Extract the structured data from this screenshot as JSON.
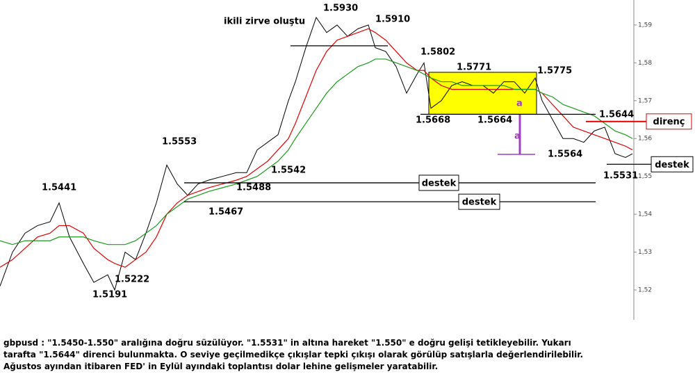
{
  "chart_data": {
    "type": "line",
    "title": "ikili zirve oluştu",
    "x": [
      0,
      18,
      36,
      54,
      72,
      85,
      100,
      120,
      135,
      155,
      165,
      180,
      195,
      210,
      225,
      240,
      255,
      270,
      285,
      300,
      320,
      340,
      355,
      370,
      385,
      400,
      415,
      425,
      440,
      455,
      470,
      485,
      500,
      515,
      530,
      540,
      555,
      570,
      585,
      600,
      610,
      620,
      635,
      650,
      665,
      680,
      695,
      710,
      725,
      740,
      755,
      770,
      780,
      795,
      810,
      825,
      840,
      855,
      870,
      885,
      900,
      910
    ],
    "xlim": [
      0,
      912
    ],
    "ylim": [
      1.5121,
      1.5966
    ],
    "yticks": [
      {
        "value": 1.52,
        "label": "1,52"
      },
      {
        "value": 1.53,
        "label": "1,53"
      },
      {
        "value": 1.54,
        "label": "1,54"
      },
      {
        "value": 1.55,
        "label": "1,55"
      },
      {
        "value": 1.56,
        "label": "1,56"
      },
      {
        "value": 1.57,
        "label": "1,57"
      },
      {
        "value": 1.58,
        "label": "1,58"
      },
      {
        "value": 1.59,
        "label": "1,59"
      }
    ],
    "series": [
      {
        "color": "#000000",
        "values": [
          1.521,
          1.53,
          1.535,
          1.537,
          1.538,
          1.543,
          1.534,
          1.527,
          1.522,
          1.524,
          1.52,
          1.53,
          1.528,
          1.535,
          1.543,
          1.553,
          1.548,
          1.545,
          1.548,
          1.549,
          1.55,
          1.551,
          1.551,
          1.557,
          1.559,
          1.561,
          1.57,
          1.575,
          1.584,
          1.592,
          1.588,
          1.59,
          1.587,
          1.589,
          1.59,
          1.584,
          1.583,
          1.579,
          1.572,
          1.577,
          1.58,
          1.568,
          1.57,
          1.574,
          1.575,
          1.574,
          1.574,
          1.572,
          1.575,
          1.575,
          1.572,
          1.576,
          1.57,
          1.565,
          1.56,
          1.56,
          1.559,
          1.562,
          1.563,
          1.556,
          1.555,
          1.556
        ]
      },
      {
        "color": "#e00000",
        "values": [
          1.526,
          1.528,
          1.531,
          1.534,
          1.535,
          1.537,
          1.537,
          1.535,
          1.531,
          1.528,
          1.527,
          1.526,
          1.528,
          1.53,
          1.534,
          1.54,
          1.543,
          1.545,
          1.546,
          1.547,
          1.548,
          1.549,
          1.55,
          1.552,
          1.554,
          1.557,
          1.56,
          1.564,
          1.571,
          1.578,
          1.583,
          1.586,
          1.587,
          1.588,
          1.589,
          1.588,
          1.586,
          1.583,
          1.58,
          1.578,
          1.578,
          1.576,
          1.574,
          1.573,
          1.573,
          1.573,
          1.573,
          1.573,
          1.573,
          1.573,
          1.573,
          1.573,
          1.572,
          1.569,
          1.566,
          1.563,
          1.562,
          1.561,
          1.56,
          1.559,
          1.558,
          1.557
        ]
      },
      {
        "color": "#1a9a1a",
        "values": [
          1.533,
          1.532,
          1.533,
          1.533,
          1.533,
          1.534,
          1.534,
          1.534,
          1.533,
          1.532,
          1.532,
          1.532,
          1.533,
          1.535,
          1.537,
          1.54,
          1.542,
          1.544,
          1.545,
          1.546,
          1.547,
          1.548,
          1.549,
          1.55,
          1.552,
          1.554,
          1.557,
          1.56,
          1.564,
          1.568,
          1.572,
          1.575,
          1.577,
          1.579,
          1.58,
          1.581,
          1.581,
          1.58,
          1.579,
          1.578,
          1.577,
          1.576,
          1.575,
          1.575,
          1.574,
          1.574,
          1.574,
          1.574,
          1.574,
          1.573,
          1.573,
          1.573,
          1.572,
          1.571,
          1.569,
          1.568,
          1.567,
          1.566,
          1.564,
          1.562,
          1.561,
          1.56
        ]
      }
    ],
    "box": [
      1.5664,
      1.5775
    ],
    "box_color": "#ffff00",
    "levels": [
      {
        "value": 1.5845
      },
      {
        "value": 1.5664
      },
      {
        "value": 1.5483,
        "label": "destek"
      },
      {
        "value": 1.5433,
        "label": "destek"
      },
      {
        "value": 1.5645,
        "label": "direnç"
      },
      {
        "value": 1.5532,
        "label": "destek"
      }
    ],
    "annotations": [
      {
        "value": 1.593,
        "label": "1.5930"
      },
      {
        "value": 1.591,
        "label": "1.5910"
      },
      {
        "value": 1.5802,
        "label": "1.5802"
      },
      {
        "value": 1.5771,
        "label": "1.5771"
      },
      {
        "value": 1.5775,
        "label": "1.5775"
      },
      {
        "value": 1.5668,
        "label": "1.5668"
      },
      {
        "value": 1.5664,
        "label": "1.5664"
      },
      {
        "value": 1.5644,
        "label": "1.5644"
      },
      {
        "value": 1.5564,
        "label": "1.5564"
      },
      {
        "value": 1.5531,
        "label": "1.5531"
      },
      {
        "value": 1.5553,
        "label": "1.5553"
      },
      {
        "value": 1.5542,
        "label": "1.5542"
      },
      {
        "value": 1.5488,
        "label": "1.5488"
      },
      {
        "value": 1.5467,
        "label": "1.5467"
      },
      {
        "value": 1.5441,
        "label": "1.5441"
      },
      {
        "value": 1.5222,
        "label": "1.5222"
      },
      {
        "value": 1.5191,
        "label": "1.5191"
      }
    ],
    "measure_labels": [
      "a",
      "a"
    ],
    "caption": [
      "gbpusd : \"1.5450-1.550\" aralığına doğru süzülüyor. \"1.5531\" in altına hareket \"1.550\" e doğru gelişi tetikleyebilir. Yukarı",
      "tarafta \"1.5644\" direnci bulunmakta. O seviye geçilmedikçe çıkışlar tepki çıkışı olarak görülüp satışlarla değerlendirilebilir.",
      "Ağustos ayından itibaren FED' in Eylül ayındaki toplantısı dolar lehine gelişmeler yaratabilir."
    ]
  }
}
